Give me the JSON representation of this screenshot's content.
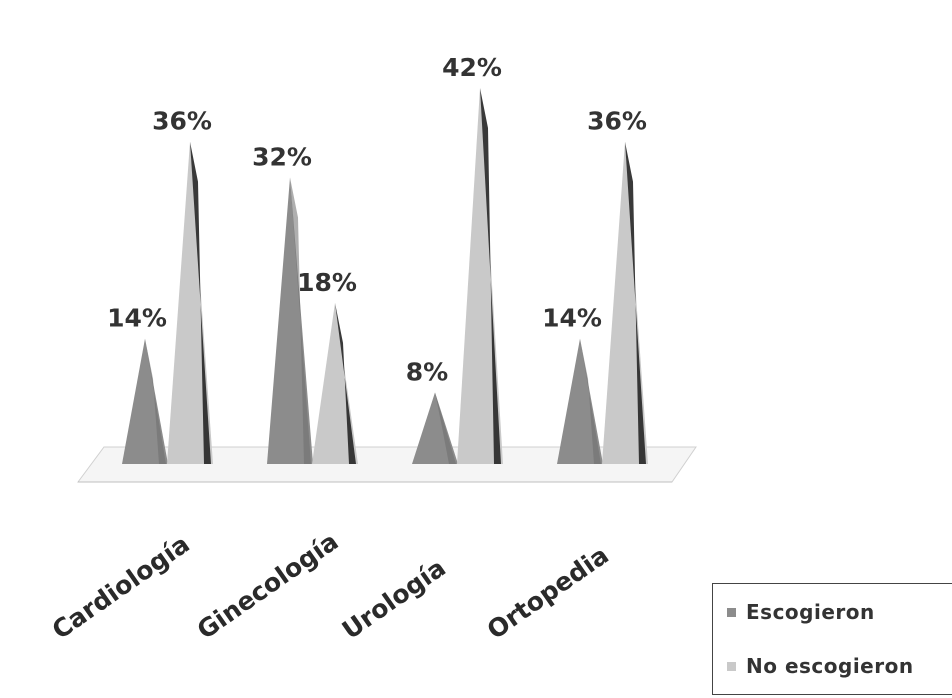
{
  "chart_data": {
    "type": "bar",
    "style": "3d-cone",
    "categories": [
      "Cardiología",
      "Ginecología",
      "Urología",
      "Ortopedia"
    ],
    "series": [
      {
        "name": "Escogieron",
        "values": [
          14,
          32,
          8,
          14
        ],
        "labels": [
          "14%",
          "32%",
          "8%",
          "14%"
        ],
        "color": "#8c8c8c"
      },
      {
        "name": "No escogieron",
        "values": [
          36,
          18,
          42,
          36
        ],
        "labels": [
          "36%",
          "18%",
          "42%",
          "36%"
        ],
        "color": "#c9c9c9"
      }
    ],
    "ylim": [
      0,
      45
    ],
    "legend_position": "bottom-right",
    "grid": false
  },
  "legend": {
    "items": [
      "Escogieron",
      "No escogieron"
    ]
  }
}
